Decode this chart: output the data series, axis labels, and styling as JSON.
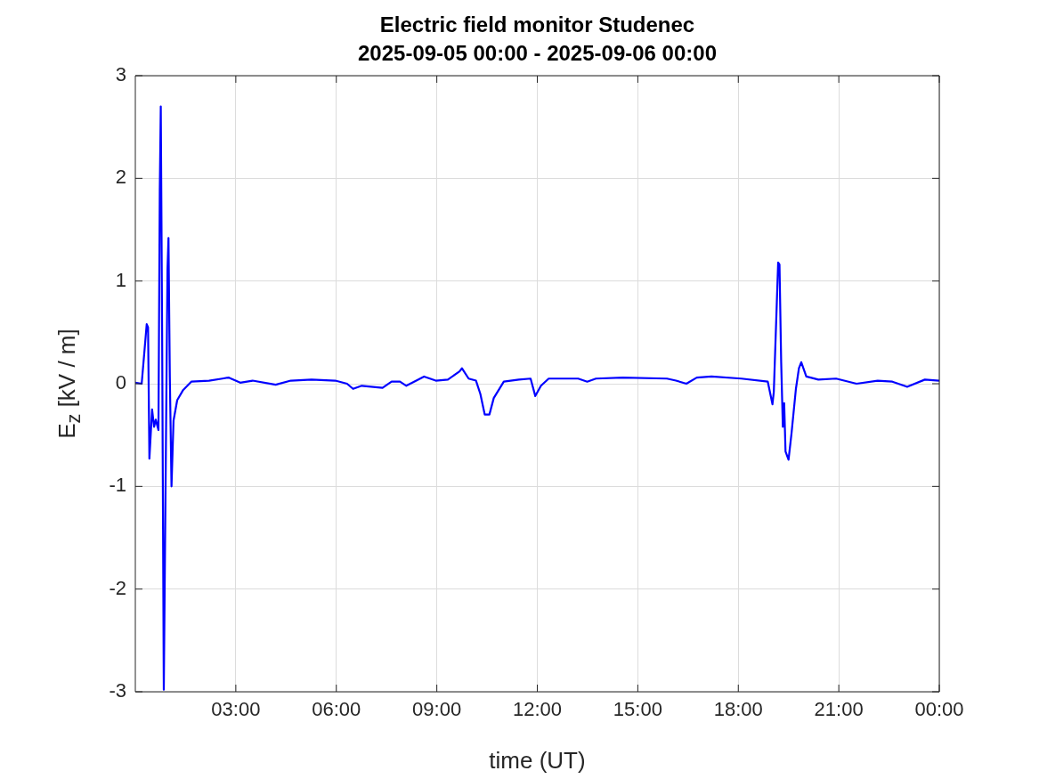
{
  "chart_data": {
    "type": "line",
    "title": "Electric field monitor Studenec",
    "subtitle": "2025-09-05 00:00 - 2025-09-06 00:00",
    "xlabel": "time (UT)",
    "ylabel": "E$_{z}$ [kV / m]",
    "xlim": [
      0,
      24
    ],
    "xticks": [
      {
        "value": 3,
        "label": "03:00"
      },
      {
        "value": 6,
        "label": "06:00"
      },
      {
        "value": 9,
        "label": "09:00"
      },
      {
        "value": 12,
        "label": "12:00"
      },
      {
        "value": 15,
        "label": "15:00"
      },
      {
        "value": 18,
        "label": "18:00"
      },
      {
        "value": 21,
        "label": "21:00"
      },
      {
        "value": 24,
        "label": "00:00"
      }
    ],
    "ylim": [
      -3,
      3
    ],
    "yticks": [
      -3,
      -2,
      -1,
      0,
      1,
      2,
      3
    ],
    "grid": true,
    "legend": false,
    "marker": "none",
    "line_style": "solid",
    "series": [
      {
        "color": "#0000ff",
        "x": [
          0,
          0.19,
          0.34,
          0.38,
          0.42,
          0.5,
          0.56,
          0.61,
          0.69,
          0.73,
          0.76,
          0.8,
          0.85,
          0.9,
          0.96,
          0.99,
          1.03,
          1.08,
          1.14,
          1.25,
          1.43,
          1.67,
          2.2,
          2.6,
          2.78,
          3.13,
          3.5,
          4.19,
          4.64,
          5.26,
          5.97,
          6.32,
          6.5,
          6.76,
          7.38,
          7.65,
          7.9,
          8.09,
          8.62,
          8.97,
          9.33,
          9.68,
          9.75,
          9.95,
          10.17,
          10.3,
          10.43,
          10.57,
          10.7,
          11.0,
          11.45,
          11.8,
          11.94,
          12.11,
          12.34,
          13.22,
          13.49,
          13.75,
          14.55,
          15.87,
          16.14,
          16.45,
          16.76,
          17.2,
          18.09,
          18.88,
          19.02,
          19.06,
          19.15,
          19.19,
          19.23,
          19.28,
          19.33,
          19.37,
          19.41,
          19.5,
          19.59,
          19.72,
          19.81,
          19.88,
          20.03,
          20.39,
          20.92,
          21.53,
          22.16,
          22.6,
          23.04,
          23.57,
          24
        ],
        "values": [
          0.01,
          0.0,
          0.58,
          0.55,
          -0.73,
          -0.25,
          -0.42,
          -0.35,
          -0.45,
          1.88,
          2.7,
          0.5,
          -2.98,
          -1.1,
          1.11,
          1.42,
          0.07,
          -1.0,
          -0.36,
          -0.16,
          -0.06,
          0.02,
          0.03,
          0.05,
          0.06,
          0.01,
          0.03,
          -0.01,
          0.03,
          0.04,
          0.03,
          0.0,
          -0.05,
          -0.02,
          -0.04,
          0.02,
          0.02,
          -0.02,
          0.07,
          0.03,
          0.04,
          0.12,
          0.15,
          0.05,
          0.03,
          -0.1,
          -0.3,
          -0.3,
          -0.14,
          0.02,
          0.04,
          0.05,
          -0.12,
          -0.02,
          0.05,
          0.05,
          0.02,
          0.05,
          0.06,
          0.05,
          0.03,
          0.0,
          0.06,
          0.07,
          0.05,
          0.02,
          -0.2,
          -0.08,
          0.79,
          1.18,
          1.16,
          0.21,
          -0.42,
          -0.19,
          -0.66,
          -0.74,
          -0.48,
          -0.05,
          0.15,
          0.21,
          0.07,
          0.04,
          0.05,
          0.0,
          0.03,
          0.02,
          -0.03,
          0.04,
          0.03
        ]
      }
    ]
  }
}
